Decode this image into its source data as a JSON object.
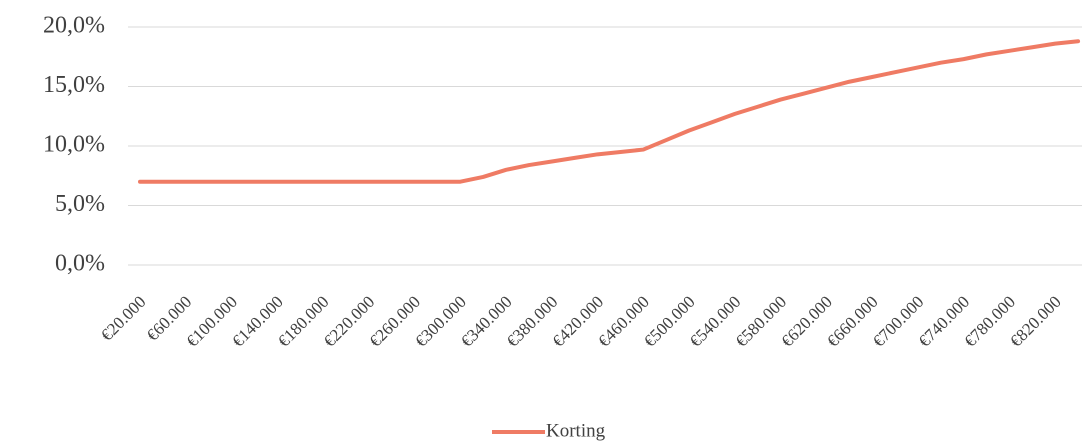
{
  "chart_data": {
    "type": "line",
    "categories": [
      "€20.000",
      null,
      "€60.000",
      null,
      "€100.000",
      null,
      "€140.000",
      null,
      "€180.000",
      null,
      "€220.000",
      null,
      "€260.000",
      null,
      "€300.000",
      null,
      "€340.000",
      null,
      "€380.000",
      null,
      "€420.000",
      null,
      "€460.000",
      null,
      "€500.000",
      null,
      "€540.000",
      null,
      "€580.000",
      null,
      "€620.000",
      null,
      "€660.000",
      null,
      "€700.000",
      null,
      "€740.000",
      null,
      "€780.000",
      null,
      "€820.000",
      null
    ],
    "series": [
      {
        "name": "Korting",
        "color": "#ef7b64",
        "values": [
          7.0,
          7.0,
          7.0,
          7.0,
          7.0,
          7.0,
          7.0,
          7.0,
          7.0,
          7.0,
          7.0,
          7.0,
          7.0,
          7.0,
          7.0,
          7.4,
          8.0,
          8.4,
          8.7,
          9.0,
          9.3,
          9.5,
          9.7,
          10.5,
          11.3,
          12.0,
          12.7,
          13.3,
          13.9,
          14.4,
          14.9,
          15.4,
          15.8,
          16.2,
          16.6,
          17.0,
          17.3,
          17.7,
          18.0,
          18.3,
          18.6,
          18.8
        ]
      }
    ],
    "ylim": [
      0,
      20
    ],
    "yticks": [
      {
        "value": 0,
        "label": "0,0%"
      },
      {
        "value": 5,
        "label": "5,0%"
      },
      {
        "value": 10,
        "label": "10,0%"
      },
      {
        "value": 15,
        "label": "15,0%"
      },
      {
        "value": 20,
        "label": "20,0%"
      }
    ],
    "grid": true,
    "legend": "bottom"
  }
}
